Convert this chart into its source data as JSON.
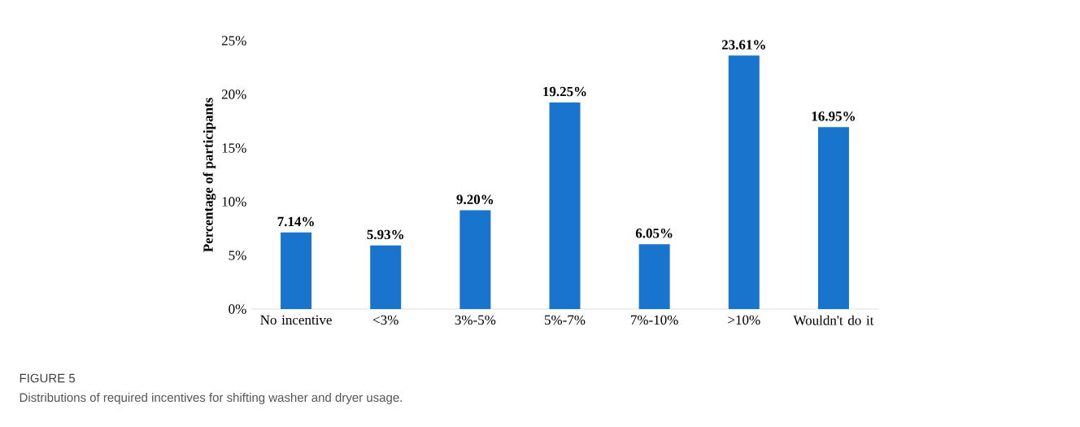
{
  "chart_data": {
    "type": "bar",
    "ylabel": "Percentage of participants",
    "categories": [
      "No incentive",
      "<3%",
      "3%-5%",
      "5%-7%",
      "7%-10%",
      ">10%",
      "Wouldn't do it"
    ],
    "values": [
      7.14,
      5.93,
      9.2,
      19.25,
      6.05,
      23.61,
      16.95
    ],
    "value_labels": [
      "7.14%",
      "5.93%",
      "9.20%",
      "19.25%",
      "6.05%",
      "23.61%",
      "16.95%"
    ],
    "color": "#1874cd",
    "ylim": [
      0,
      25
    ],
    "yticks": [
      {
        "value": 0,
        "label": "0%"
      },
      {
        "value": 5,
        "label": "5%"
      },
      {
        "value": 10,
        "label": "10%"
      },
      {
        "value": 15,
        "label": "15%"
      },
      {
        "value": 20,
        "label": "20%"
      },
      {
        "value": 25,
        "label": "25%"
      }
    ],
    "annotations": [
      "FIGURE 5",
      "Distributions of required incentives for shifting washer and dryer usage."
    ]
  }
}
